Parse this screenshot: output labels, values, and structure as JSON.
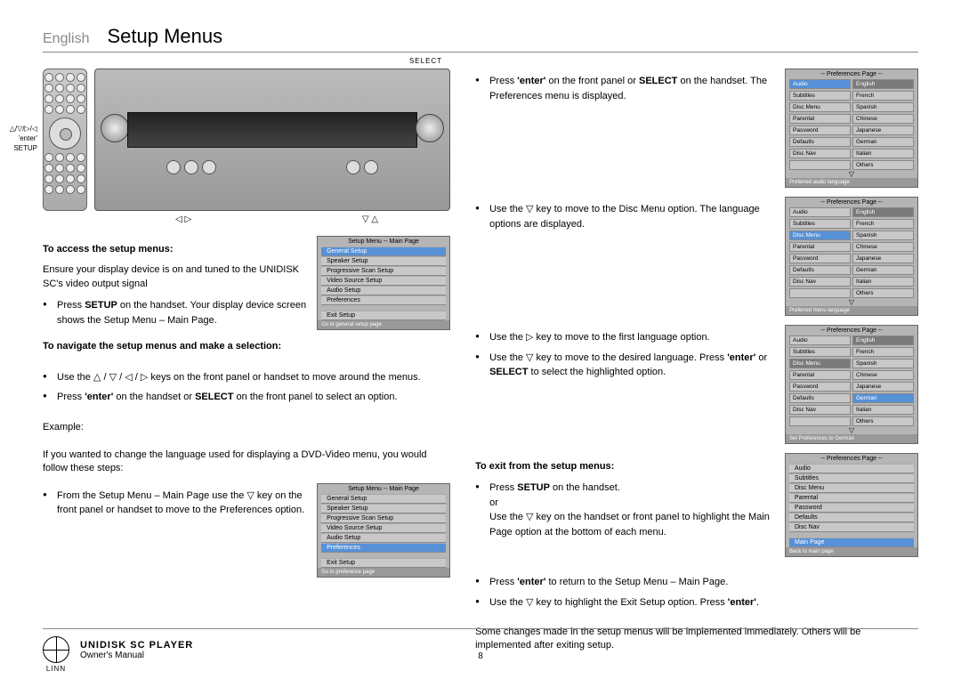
{
  "header": {
    "language": "English",
    "title": "Setup Menus"
  },
  "deviceLabels": {
    "select": "SELECT",
    "remoteLines": "△/▽/◁/▷\n'enter'\nSETUP",
    "bottomArrows1": "◁    ▷",
    "bottomArrows2": "▽  △"
  },
  "left": {
    "h1": "To access the setup menus:",
    "p1": "Ensure your display device is on and tuned to the UNIDISK SC's video output signal",
    "b1": "Press <b>SETUP</b> on the handset. Your display device screen shows the Setup Menu – Main Page.",
    "h2": "To navigate the setup menus and make a selection:",
    "b2": "Use the △ / ▽ / ◁ / ▷ keys on the front panel or handset to move around the menus.",
    "b3": "Press <b>'enter'</b> on the handset or <b>SELECT</b> on the front panel to select an option.",
    "example": "Example:",
    "exText": "If you wanted to change the language used for displaying a DVD-Video menu, you would follow these steps:",
    "b4": "From the Setup Menu – Main Page use the ▽ key on the front panel or handset to move to the Preferences option."
  },
  "right": {
    "r1": "Press <b>'enter'</b> on the front panel or <b>SELECT</b> on the handset. The Preferences menu is displayed.",
    "r2": "Use the ▽ key to move to the Disc Menu option. The language options are displayed.",
    "r3": "Use the ▷ key to move to the first language option.",
    "r4": "Use the ▽ key to move to the desired language. Press <b>'enter'</b> or <b>SELECT</b> to select the highlighted option.",
    "hExit": "To exit from the setup menus:",
    "r5a": "Press <b>SETUP</b> on the handset.",
    "r5or": "or",
    "r5b": "Use the ▽ key on the handset or front panel to highlight the Main Page option at the bottom of each menu.",
    "r6": "Press <b>'enter'</b> to return to the Setup Menu – Main Page.",
    "r7": "Use the ▽ key to highlight the Exit Setup option. Press <b>'enter'</b>.",
    "closing": "Some changes made in the setup menus will be implemented immediately. Others will be implemented after exiting setup."
  },
  "osd": {
    "mainTitle": "Setup Menu -- Main Page",
    "mainItems": [
      "General Setup",
      "Speaker Setup",
      "Progressive Scan Setup",
      "Video Source Setup",
      "Audio Setup",
      "Preferences"
    ],
    "exit": "Exit Setup",
    "footMain1": "Go to general setup page",
    "footMain2": "Go to preference page",
    "prefTitle": "-- Preferences Page --",
    "prefLeft": [
      "Audio",
      "Subtitles",
      "Disc Menu",
      "Parental",
      "Password",
      "Defaults",
      "Disc Nav"
    ],
    "langs": [
      "English",
      "French",
      "Spanish",
      "Chinese",
      "Japanese",
      "German",
      "Italian",
      "Others"
    ],
    "footPref1": "Preferred audio language",
    "footPref2": "Preferred menu language",
    "footPref3": "Set Preferences to German",
    "mainPage": "Main Page",
    "footBack": "Back to main page"
  },
  "footer": {
    "product": "UNIDISK SC PLAYER",
    "sub": "Owner's Manual",
    "brand": "LINN",
    "page": "8"
  }
}
